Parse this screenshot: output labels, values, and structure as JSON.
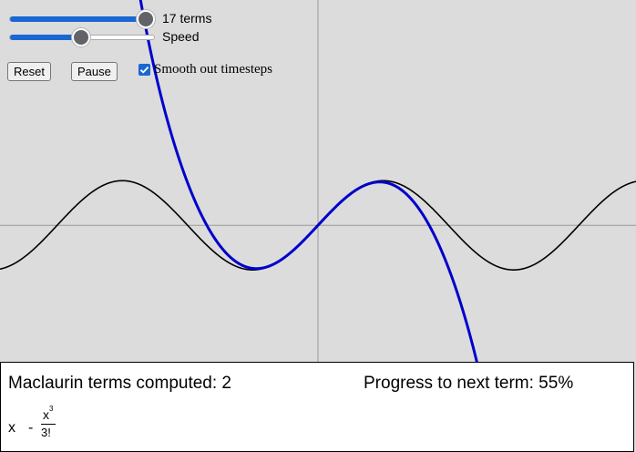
{
  "controls": {
    "terms_slider": {
      "label": "17 terms",
      "value_fraction": 1.0
    },
    "speed_slider": {
      "label": "Speed",
      "value_fraction": 0.5
    },
    "reset_label": "Reset",
    "pause_label": "Pause",
    "smooth_label": "Smooth out timesteps",
    "smooth_checked": true
  },
  "info": {
    "terms_computed": "Maclaurin terms computed: 2",
    "progress": "Progress to next term: 55%",
    "series": {
      "first_term": "x",
      "operator": "-",
      "numerator": "x",
      "exponent": "3",
      "denominator": "3!"
    }
  },
  "colors": {
    "background": "#dcdcdc",
    "axis": "#999999",
    "function_curve": "#000000",
    "approximation_curve": "#0000cc",
    "accent": "#1967d2"
  },
  "chart_data": {
    "type": "line",
    "title": "",
    "xlabel": "",
    "ylabel": "",
    "function": "sin(x)",
    "approximation": "x - x^3/3! + 0.55 * (next terms)",
    "xlim": [
      -7.66,
      7.66
    ],
    "ylim": [
      -3.08,
      5.05
    ],
    "grid": false,
    "series": [
      {
        "name": "",
        "kind": "sin",
        "color": "#000000"
      },
      {
        "name": "",
        "kind": "maclaurin",
        "color": "#0000cc"
      }
    ]
  }
}
